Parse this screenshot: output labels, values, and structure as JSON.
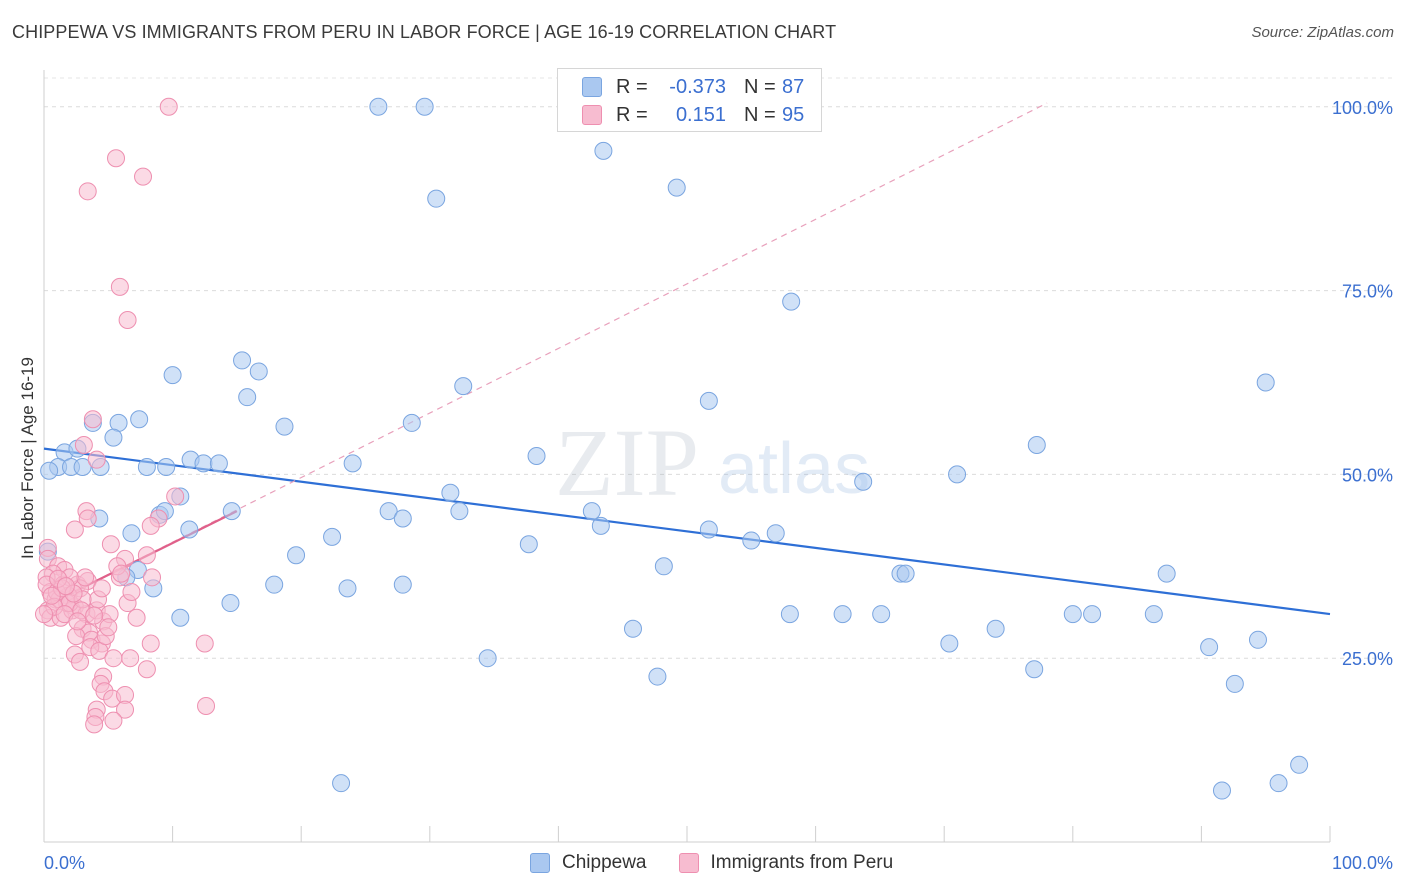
{
  "title": "CHIPPEWA VS IMMIGRANTS FROM PERU IN LABOR FORCE | AGE 16-19 CORRELATION CHART",
  "source": "Source: ZipAtlas.com",
  "watermark": {
    "zip": "ZIP",
    "atlas": "atlas"
  },
  "legend": {
    "rows": [
      {
        "r_label": "R =",
        "r_value": "-0.373",
        "n_label": "N =",
        "n_value": "87",
        "color": "#aac8f0",
        "border": "#7aa5e0"
      },
      {
        "r_label": "R =",
        "r_value": "0.151",
        "n_label": "N =",
        "n_value": "95",
        "color": "#f7bcd0",
        "border": "#ee8fb0"
      }
    ]
  },
  "bottom_legend": [
    {
      "label": "Chippewa",
      "color": "#aac8f0",
      "border": "#7aa5e0"
    },
    {
      "label": "Immigrants from Peru",
      "color": "#f7bcd0",
      "border": "#ee8fb0"
    }
  ],
  "chart_data": {
    "type": "scatter",
    "title": "CHIPPEWA VS IMMIGRANTS FROM PERU IN LABOR FORCE | AGE 16-19 CORRELATION CHART",
    "xlabel": "",
    "ylabel": "In Labor Force | Age 16-19",
    "xlim": [
      0,
      100
    ],
    "ylim": [
      0,
      105
    ],
    "x_tick_labels": [
      "0.0%",
      "100.0%"
    ],
    "y_ticks": [
      25,
      50,
      75,
      100
    ],
    "y_tick_labels": [
      "25.0%",
      "50.0%",
      "75.0%",
      "100.0%"
    ],
    "grid": true,
    "series": [
      {
        "name": "Chippewa",
        "color": "#7aa5e0",
        "fill": "#aac8f0",
        "trend": {
          "x": [
            0,
            100
          ],
          "y": [
            53.5,
            31.0
          ],
          "color": "#2e6fd6",
          "style": "solid"
        },
        "points": [
          [
            26,
            100
          ],
          [
            29.6,
            100
          ],
          [
            43.5,
            94
          ],
          [
            49.2,
            89
          ],
          [
            30.5,
            87.5
          ],
          [
            58.1,
            73.5
          ],
          [
            95,
            62.5
          ],
          [
            51.7,
            60
          ],
          [
            15.4,
            65.5
          ],
          [
            16.7,
            64
          ],
          [
            10,
            63.5
          ],
          [
            32.6,
            62
          ],
          [
            15.8,
            60.5
          ],
          [
            18.7,
            56.5
          ],
          [
            28.6,
            57
          ],
          [
            7.4,
            57.5
          ],
          [
            5.8,
            57
          ],
          [
            3.8,
            57
          ],
          [
            5.4,
            55
          ],
          [
            1.6,
            53
          ],
          [
            2.6,
            53.5
          ],
          [
            11.4,
            52
          ],
          [
            12.4,
            51.5
          ],
          [
            13.6,
            51.5
          ],
          [
            1.1,
            51
          ],
          [
            0.4,
            50.5
          ],
          [
            2.1,
            51
          ],
          [
            3.0,
            51
          ],
          [
            4.4,
            51
          ],
          [
            8.0,
            51
          ],
          [
            9.5,
            51
          ],
          [
            24.0,
            51.5
          ],
          [
            38.3,
            52.5
          ],
          [
            77.2,
            54
          ],
          [
            71.0,
            50
          ],
          [
            63.7,
            49
          ],
          [
            31.6,
            47.5
          ],
          [
            10.6,
            47
          ],
          [
            9.0,
            44.5
          ],
          [
            9.4,
            45
          ],
          [
            14.6,
            45
          ],
          [
            26.8,
            45
          ],
          [
            27.9,
            44
          ],
          [
            32.3,
            45
          ],
          [
            42.6,
            45
          ],
          [
            4.3,
            44
          ],
          [
            43.3,
            43
          ],
          [
            51.7,
            42.5
          ],
          [
            56.9,
            42
          ],
          [
            55.0,
            41
          ],
          [
            11.3,
            42.5
          ],
          [
            6.8,
            42
          ],
          [
            22.4,
            41.5
          ],
          [
            19.6,
            39
          ],
          [
            37.7,
            40.5
          ],
          [
            48.2,
            37.5
          ],
          [
            7.3,
            37
          ],
          [
            6.4,
            36
          ],
          [
            66.6,
            36.5
          ],
          [
            67.0,
            36.5
          ],
          [
            87.3,
            36.5
          ],
          [
            17.9,
            35
          ],
          [
            27.9,
            35
          ],
          [
            8.5,
            34.5
          ],
          [
            23.6,
            34.5
          ],
          [
            14.5,
            32.5
          ],
          [
            10.6,
            30.5
          ],
          [
            58.0,
            31
          ],
          [
            62.1,
            31
          ],
          [
            65.1,
            31
          ],
          [
            80.0,
            31
          ],
          [
            81.5,
            31
          ],
          [
            86.3,
            31
          ],
          [
            45.8,
            29
          ],
          [
            74.0,
            29
          ],
          [
            70.4,
            27
          ],
          [
            94.4,
            27.5
          ],
          [
            90.6,
            26.5
          ],
          [
            34.5,
            25
          ],
          [
            47.7,
            22.5
          ],
          [
            77.0,
            23.5
          ],
          [
            92.6,
            21.5
          ],
          [
            97.6,
            10.5
          ],
          [
            23.1,
            8
          ],
          [
            91.6,
            7
          ],
          [
            96.0,
            8
          ],
          [
            0.3,
            39.5
          ]
        ]
      },
      {
        "name": "Immigrants from Peru",
        "color": "#ee8fb0",
        "fill": "#f7bcd0",
        "trend": {
          "x": [
            0,
            15
          ],
          "y": [
            32.0,
            45.0
          ],
          "color": "#e0608a",
          "style": "solid"
        },
        "trend_dashed": {
          "x": [
            0,
            78
          ],
          "y": [
            32.0,
            100.5
          ],
          "color": "#e8a0bb",
          "style": "dashed"
        },
        "points": [
          [
            9.7,
            100
          ],
          [
            5.6,
            93
          ],
          [
            7.7,
            90.5
          ],
          [
            3.4,
            88.5
          ],
          [
            5.9,
            75.5
          ],
          [
            6.5,
            71
          ],
          [
            3.8,
            57.5
          ],
          [
            3.1,
            54
          ],
          [
            4.1,
            52
          ],
          [
            3.3,
            45
          ],
          [
            3.4,
            44
          ],
          [
            8.9,
            44
          ],
          [
            10.2,
            47
          ],
          [
            2.4,
            42.5
          ],
          [
            8.3,
            43
          ],
          [
            5.2,
            40.5
          ],
          [
            0.3,
            40
          ],
          [
            0.3,
            38.5
          ],
          [
            1.1,
            37.5
          ],
          [
            1.6,
            37
          ],
          [
            0.7,
            36.5
          ],
          [
            0.2,
            36
          ],
          [
            5.9,
            36
          ],
          [
            8.0,
            39
          ],
          [
            6.3,
            38.5
          ],
          [
            8.4,
            36
          ],
          [
            5.7,
            37.5
          ],
          [
            2.6,
            35
          ],
          [
            3.4,
            35.5
          ],
          [
            1.5,
            35
          ],
          [
            2.8,
            34.5
          ],
          [
            0.5,
            34
          ],
          [
            1.9,
            33.5
          ],
          [
            0.9,
            33
          ],
          [
            2.4,
            32
          ],
          [
            0.3,
            31.5
          ],
          [
            0.5,
            30.5
          ],
          [
            1.3,
            30.5
          ],
          [
            2.2,
            31.5
          ],
          [
            3.3,
            31
          ],
          [
            4.1,
            31.5
          ],
          [
            4.6,
            30
          ],
          [
            5.1,
            31
          ],
          [
            6.5,
            32.5
          ],
          [
            7.2,
            30.5
          ],
          [
            1.8,
            32.5
          ],
          [
            1.2,
            33
          ],
          [
            4.2,
            33
          ],
          [
            6.8,
            34
          ],
          [
            3.0,
            29
          ],
          [
            3.5,
            28.5
          ],
          [
            2.5,
            28
          ],
          [
            3.7,
            27.5
          ],
          [
            4.5,
            27
          ],
          [
            3.6,
            26.5
          ],
          [
            4.3,
            26
          ],
          [
            6.7,
            25
          ],
          [
            8.3,
            27
          ],
          [
            12.5,
            27
          ],
          [
            2.4,
            25.5
          ],
          [
            5.4,
            25
          ],
          [
            2.8,
            24.5
          ],
          [
            8.0,
            23.5
          ],
          [
            4.6,
            22.5
          ],
          [
            4.4,
            21.5
          ],
          [
            4.7,
            20.5
          ],
          [
            5.3,
            19.5
          ],
          [
            6.3,
            20
          ],
          [
            4.1,
            18
          ],
          [
            6.3,
            18
          ],
          [
            12.6,
            18.5
          ],
          [
            4.0,
            17
          ],
          [
            5.4,
            16.5
          ],
          [
            3.9,
            16
          ],
          [
            0.2,
            35
          ],
          [
            1.0,
            34
          ],
          [
            2.0,
            32.5
          ],
          [
            3.0,
            33
          ],
          [
            0.8,
            32
          ],
          [
            1.6,
            31
          ],
          [
            2.9,
            31.5
          ],
          [
            4.5,
            34.5
          ],
          [
            6.0,
            36.5
          ],
          [
            3.2,
            36
          ],
          [
            2.0,
            36
          ],
          [
            1.4,
            34.5
          ],
          [
            0.6,
            33.5
          ],
          [
            2.3,
            33.8
          ],
          [
            3.9,
            30.8
          ],
          [
            4.8,
            28.0
          ],
          [
            1.1,
            35.8
          ],
          [
            2.6,
            30.0
          ],
          [
            5.0,
            29.2
          ],
          [
            0.0,
            31.0
          ],
          [
            1.7,
            34.8
          ]
        ]
      }
    ]
  },
  "axis": {
    "y_label": "In Labor Force | Age 16-19"
  }
}
